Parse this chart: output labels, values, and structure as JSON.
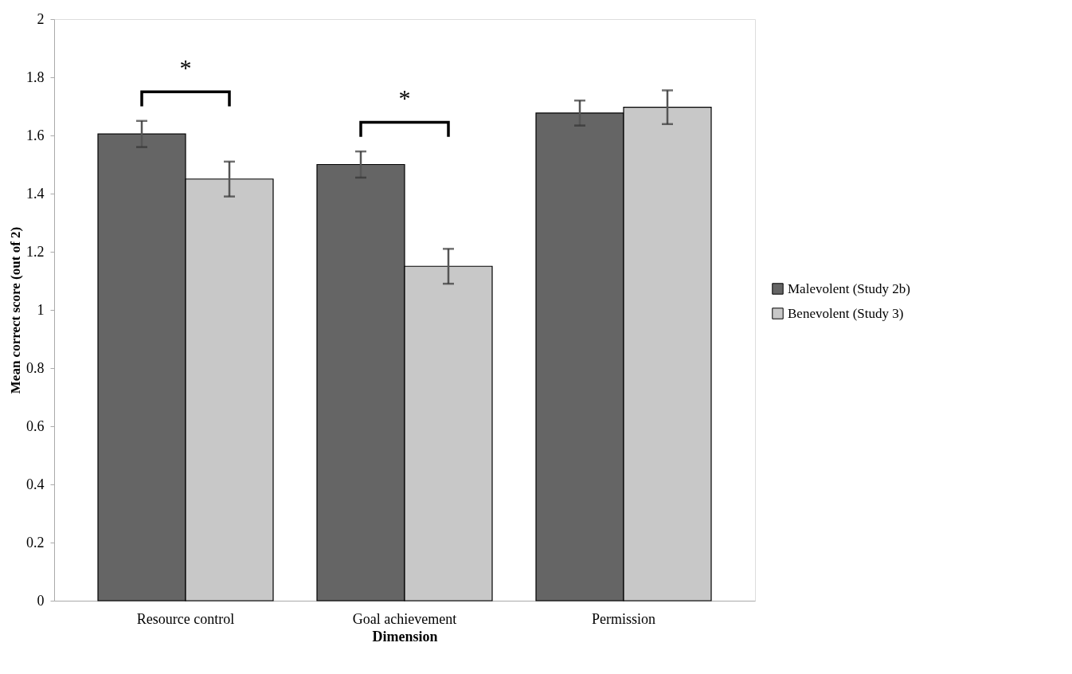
{
  "chart_data": {
    "type": "bar",
    "xlabel": "Dimension",
    "ylabel": "Mean correct score (out of 2)",
    "categories": [
      "Resource control",
      "Goal achievement",
      "Permission"
    ],
    "series": [
      {
        "name": "Malevolent (Study 2b)",
        "color": "#656565",
        "values": [
          1.605,
          1.5,
          1.677
        ],
        "errors": [
          0.045,
          0.045,
          0.043
        ]
      },
      {
        "name": "Benevolent (Study 3)",
        "color": "#c8c8c8",
        "values": [
          1.45,
          1.15,
          1.697
        ],
        "errors": [
          0.06,
          0.06,
          0.058
        ]
      }
    ],
    "ylim": [
      0,
      2
    ],
    "yticks": [
      0,
      0.2,
      0.4,
      0.6,
      0.8,
      1,
      1.2,
      1.4,
      1.6,
      1.8,
      2
    ],
    "grid": false,
    "legend": "right",
    "annotations": [
      "*",
      "*"
    ]
  }
}
